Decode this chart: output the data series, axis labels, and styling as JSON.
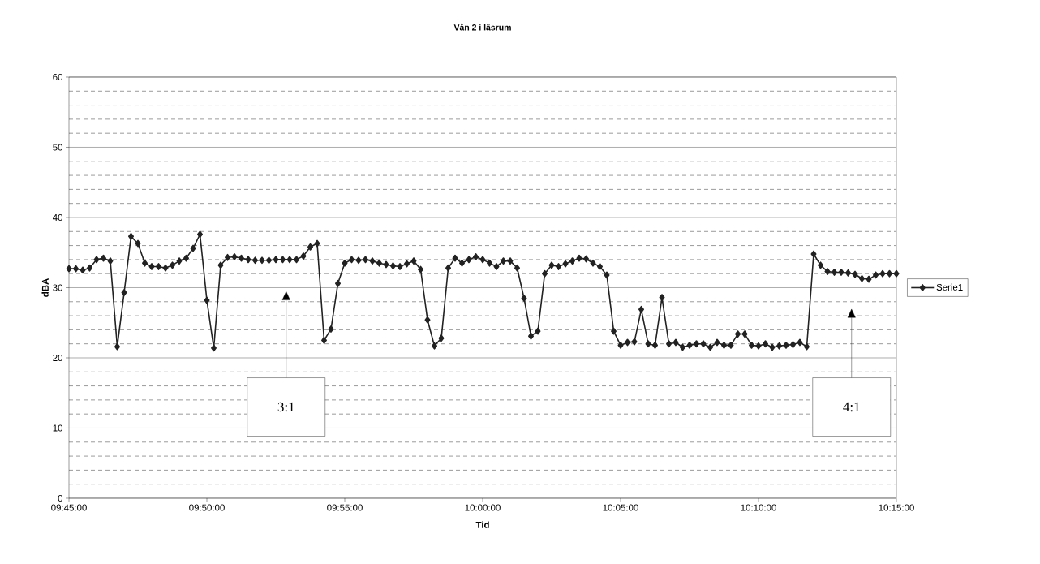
{
  "chart_data": {
    "type": "line",
    "title": "Vån 2 i läsrum",
    "xlabel": "Tid",
    "ylabel": "dBA",
    "categories": [
      "09:45:00",
      null,
      null,
      null,
      null,
      null,
      null,
      null,
      null,
      null,
      null,
      null,
      null,
      null,
      null,
      null,
      null,
      null,
      null,
      null,
      "09:50:00",
      null,
      null,
      null,
      null,
      null,
      null,
      null,
      null,
      null,
      null,
      null,
      null,
      null,
      null,
      null,
      null,
      null,
      null,
      null,
      "09:55:00",
      null,
      null,
      null,
      null,
      null,
      null,
      null,
      null,
      null,
      null,
      null,
      null,
      null,
      null,
      null,
      null,
      null,
      null,
      null,
      "10:00:00",
      null,
      null,
      null,
      null,
      null,
      null,
      null,
      null,
      null,
      null,
      null,
      null,
      null,
      null,
      null,
      null,
      null,
      null,
      null,
      "10:05:00",
      null,
      null,
      null,
      null,
      null,
      null,
      null,
      null,
      null,
      null,
      null,
      null,
      null,
      null,
      null,
      null,
      null,
      null,
      null,
      "10:10:00",
      null,
      null,
      null,
      null,
      null,
      null,
      null,
      null,
      null,
      null,
      null,
      null,
      null,
      null,
      null,
      null,
      null,
      null,
      null,
      "10:15:00"
    ],
    "series": [
      {
        "name": "Serie1",
        "color": "#222222",
        "values": [
          32.7,
          32.7,
          32.5,
          32.8,
          34.0,
          34.2,
          33.8,
          21.6,
          29.3,
          37.3,
          36.3,
          33.5,
          33.0,
          33.0,
          32.8,
          33.2,
          33.8,
          34.2,
          35.6,
          37.6,
          28.2,
          21.4,
          33.2,
          34.3,
          34.4,
          34.2,
          34.0,
          33.9,
          33.9,
          33.9,
          34.0,
          34.0,
          34.0,
          34.0,
          34.5,
          35.8,
          36.3,
          22.5,
          24.1,
          30.6,
          33.5,
          34.0,
          33.9,
          34.0,
          33.8,
          33.5,
          33.3,
          33.1,
          33.0,
          33.4,
          33.8,
          32.6,
          25.4,
          21.7,
          22.8,
          32.8,
          34.2,
          33.5,
          34.0,
          34.4,
          34.0,
          33.5,
          33.0,
          33.8,
          33.8,
          32.8,
          28.5,
          23.1,
          23.8,
          32.0,
          33.2,
          33.0,
          33.4,
          33.8,
          34.2,
          34.1,
          33.5,
          33.0,
          31.8,
          23.8,
          21.8,
          22.2,
          22.3,
          26.9,
          22.0,
          21.8,
          28.6,
          22.0,
          22.2,
          21.5,
          21.8,
          22.0,
          22.0,
          21.5,
          22.2,
          21.8,
          21.8,
          23.4,
          23.4,
          21.8,
          21.7,
          22.0,
          21.5,
          21.7,
          21.8,
          21.9,
          22.2,
          21.6,
          34.8,
          33.2,
          32.3,
          32.2,
          32.2,
          32.1,
          31.9,
          31.3,
          31.2,
          31.8,
          32.0,
          32.0,
          32.0
        ]
      }
    ],
    "ylim": [
      0,
      60
    ],
    "yticks": [
      0,
      10,
      20,
      30,
      40,
      50,
      60
    ],
    "grid": "y",
    "legend": "right",
    "marker": "diamond",
    "line_style": "solid",
    "annotations": [
      "3:1",
      "4:1"
    ]
  }
}
